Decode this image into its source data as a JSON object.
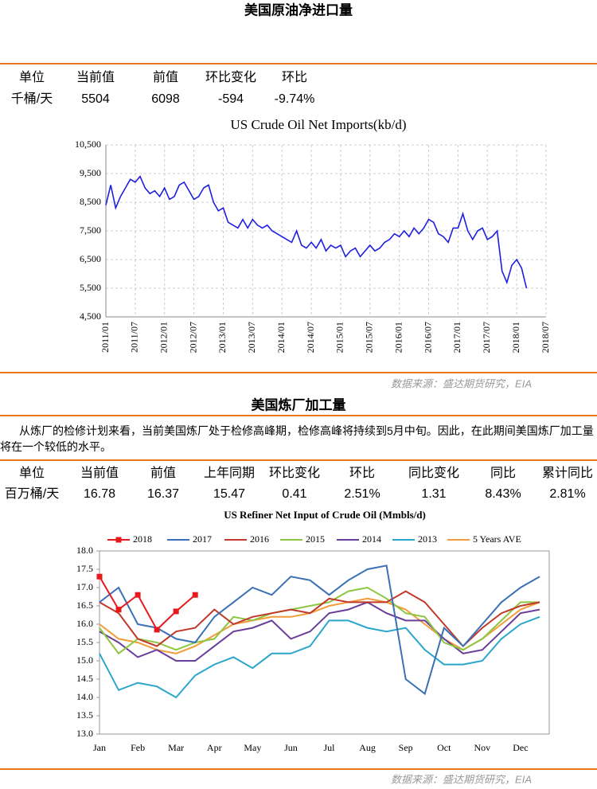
{
  "sections": [
    {
      "title": "美国原油净进口量",
      "table": {
        "header": [
          "单位",
          "当前值",
          "前值",
          "环比变化",
          "环比"
        ],
        "rows": [
          [
            "千桶/天",
            "5504",
            "6098",
            "-594",
            "-9.74%"
          ]
        ]
      },
      "source": "数据来源：盛达期货研究，EIA"
    },
    {
      "title": "美国炼厂加工量",
      "text": "从炼厂的检修计划来看，当前美国炼厂处于检修高峰期，检修高峰将持续到5月中旬。因此，在此期间美国炼厂加工量将在一个较低的水平。",
      "table": {
        "header": [
          "单位",
          "当前值",
          "前值",
          "上年同期",
          "环比变化",
          "环比",
          "同比变化",
          "同比",
          "累计同比"
        ],
        "rows": [
          [
            "百万桶/天",
            "16.78",
            "16.37",
            "15.47",
            "0.41",
            "2.51%",
            "1.31",
            "8.43%",
            "2.81%"
          ]
        ]
      },
      "source": "数据来源：盛达期货研究，EIA"
    }
  ],
  "chart_data": [
    {
      "type": "line",
      "title": "US Crude Oil Net Imports(kb/d)",
      "color": "#1f1fe0",
      "grid": true,
      "x": [
        "2011/01",
        "2011/02",
        "2011/03",
        "2011/04",
        "2011/05",
        "2011/06",
        "2011/07",
        "2011/08",
        "2011/09",
        "2011/10",
        "2011/11",
        "2011/12",
        "2012/01",
        "2012/02",
        "2012/03",
        "2012/04",
        "2012/05",
        "2012/06",
        "2012/07",
        "2012/08",
        "2012/09",
        "2012/10",
        "2012/11",
        "2012/12",
        "2013/01",
        "2013/02",
        "2013/03",
        "2013/04",
        "2013/05",
        "2013/06",
        "2013/07",
        "2013/08",
        "2013/09",
        "2013/10",
        "2013/11",
        "2013/12",
        "2014/01",
        "2014/02",
        "2014/03",
        "2014/04",
        "2014/05",
        "2014/06",
        "2014/07",
        "2014/08",
        "2014/09",
        "2014/10",
        "2014/11",
        "2014/12",
        "2015/01",
        "2015/02",
        "2015/03",
        "2015/04",
        "2015/05",
        "2015/06",
        "2015/07",
        "2015/08",
        "2015/09",
        "2015/10",
        "2015/11",
        "2015/12",
        "2016/01",
        "2016/02",
        "2016/03",
        "2016/04",
        "2016/05",
        "2016/06",
        "2016/07",
        "2016/08",
        "2016/09",
        "2016/10",
        "2016/11",
        "2016/12",
        "2017/01",
        "2017/02",
        "2017/03",
        "2017/04",
        "2017/05",
        "2017/06",
        "2017/07",
        "2017/08",
        "2017/09",
        "2017/10",
        "2017/11",
        "2017/12",
        "2018/01",
        "2018/02",
        "2018/03"
      ],
      "values": [
        8400,
        9100,
        8300,
        8700,
        9000,
        9300,
        9200,
        9400,
        9000,
        8800,
        8900,
        8700,
        9000,
        8600,
        8700,
        9100,
        9200,
        8900,
        8600,
        8700,
        9000,
        9100,
        8500,
        8200,
        8300,
        7800,
        7700,
        7600,
        7900,
        7600,
        7900,
        7700,
        7600,
        7700,
        7500,
        7400,
        7300,
        7200,
        7100,
        7500,
        7000,
        6900,
        7100,
        6900,
        7200,
        6800,
        7000,
        6900,
        7000,
        6600,
        6800,
        6900,
        6600,
        6800,
        7000,
        6800,
        6900,
        7100,
        7200,
        7400,
        7300,
        7500,
        7300,
        7600,
        7400,
        7600,
        7900,
        7800,
        7400,
        7300,
        7100,
        7600,
        7600,
        8100,
        7500,
        7200,
        7500,
        7600,
        7200,
        7300,
        7500,
        6100,
        5700,
        6300,
        6500,
        6200,
        5504
      ],
      "xlim": [
        "2011/01",
        "2018/07"
      ],
      "xticks": [
        "2011/01",
        "2011/07",
        "2012/01",
        "2012/07",
        "2013/01",
        "2013/07",
        "2014/01",
        "2014/07",
        "2015/01",
        "2015/07",
        "2016/01",
        "2016/07",
        "2017/01",
        "2017/07",
        "2018/01",
        "2018/07"
      ],
      "ylim": [
        4500,
        10500
      ],
      "yticks": [
        {
          "value": 4500,
          "label": "4,500"
        },
        {
          "value": 5500,
          "label": "5,500"
        },
        {
          "value": 6500,
          "label": "6,500"
        },
        {
          "value": 7500,
          "label": "7,500"
        },
        {
          "value": 8500,
          "label": "8,500"
        },
        {
          "value": 9500,
          "label": "9,500"
        },
        {
          "value": 10500,
          "label": "10,500"
        }
      ]
    },
    {
      "type": "line",
      "title": "US Refiner Net Input of Crude Oil (Mmbls/d)",
      "legend": "top",
      "categories": [
        "Jan",
        null,
        "Feb",
        null,
        "Mar",
        null,
        "Apr",
        null,
        "May",
        null,
        "Jun",
        null,
        "Jul",
        null,
        "Aug",
        null,
        "Sep",
        null,
        "Oct",
        null,
        "Nov",
        null,
        "Dec",
        null
      ],
      "series": [
        {
          "name": "2018",
          "color": "#e8191c",
          "marker": "square",
          "values": [
            17.3,
            16.4,
            16.8,
            15.85,
            16.35,
            16.8,
            null,
            null,
            null,
            null,
            null,
            null,
            null,
            null,
            null,
            null,
            null,
            null,
            null,
            null,
            null,
            null,
            null,
            null
          ]
        },
        {
          "name": "2017",
          "color": "#3a70b5",
          "values": [
            16.6,
            17.0,
            16.0,
            15.9,
            15.6,
            15.5,
            16.2,
            16.6,
            17.0,
            16.8,
            17.3,
            17.2,
            16.8,
            17.2,
            17.5,
            17.6,
            14.5,
            14.1,
            15.9,
            15.4,
            16.0,
            16.6,
            17.0,
            17.3
          ]
        },
        {
          "name": "2016",
          "color": "#c0392b",
          "values": [
            16.6,
            16.3,
            15.6,
            15.4,
            15.8,
            15.9,
            16.4,
            16.0,
            16.2,
            16.3,
            16.4,
            16.3,
            16.7,
            16.6,
            16.6,
            16.6,
            16.9,
            16.6,
            16.0,
            15.4,
            15.9,
            16.3,
            16.5,
            16.6
          ]
        },
        {
          "name": "2015",
          "color": "#8dc63f",
          "values": [
            15.9,
            15.2,
            15.6,
            15.5,
            15.3,
            15.5,
            15.6,
            16.2,
            16.1,
            16.3,
            16.4,
            16.5,
            16.6,
            16.9,
            17.0,
            16.7,
            16.3,
            16.2,
            15.5,
            15.3,
            15.6,
            16.1,
            16.6,
            16.6
          ]
        },
        {
          "name": "2014",
          "color": "#6a3d9a",
          "values": [
            15.8,
            15.5,
            15.1,
            15.3,
            15.0,
            15.0,
            15.4,
            15.8,
            15.9,
            16.1,
            15.6,
            15.8,
            16.3,
            16.4,
            16.6,
            16.3,
            16.1,
            16.1,
            15.6,
            15.2,
            15.3,
            15.8,
            16.3,
            16.4
          ]
        },
        {
          "name": "2013",
          "color": "#2ba6cb",
          "values": [
            15.2,
            14.2,
            14.4,
            14.3,
            14.0,
            14.6,
            14.9,
            15.1,
            14.8,
            15.2,
            15.2,
            15.4,
            16.1,
            16.1,
            15.9,
            15.8,
            15.9,
            15.3,
            14.9,
            14.9,
            15.0,
            15.6,
            16.0,
            16.2
          ]
        },
        {
          "name": "5 Years AVE",
          "color": "#f39c3a",
          "values": [
            16.0,
            15.6,
            15.5,
            15.3,
            15.2,
            15.4,
            15.7,
            16.0,
            16.1,
            16.2,
            16.2,
            16.3,
            16.5,
            16.6,
            16.7,
            16.6,
            16.4,
            16.0,
            15.6,
            15.3,
            15.6,
            16.0,
            16.4,
            16.6
          ]
        }
      ],
      "ylim": [
        13,
        18
      ],
      "yticks": [
        {
          "value": 13,
          "label": "13.0"
        },
        13.5,
        {
          "value": 14,
          "label": "14.0"
        },
        14.5,
        {
          "value": 15,
          "label": "15.0"
        },
        15.5,
        {
          "value": 16,
          "label": "16.0"
        },
        16.5,
        {
          "value": 17,
          "label": "17.0"
        },
        17.5,
        {
          "value": 18,
          "label": "18.0"
        }
      ]
    }
  ]
}
